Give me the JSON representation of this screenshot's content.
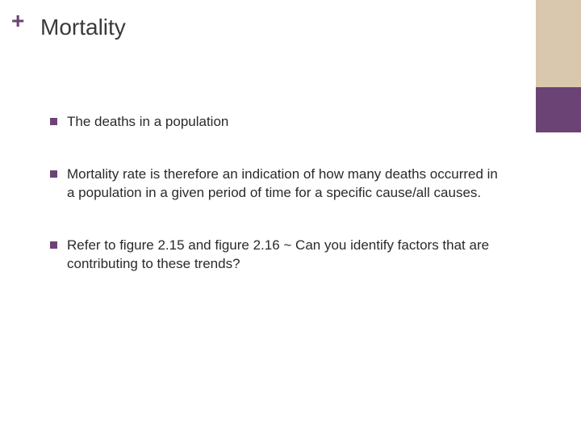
{
  "slide": {
    "plus_symbol": "+",
    "title": "Mortality",
    "accent_color": "#6b4475",
    "sidebar_colors": [
      "#d9c8ad",
      "#6b4475"
    ],
    "background_color": "#ffffff",
    "title_fontsize": 28,
    "body_fontsize": 17,
    "bullets": [
      {
        "text": "The deaths in a population"
      },
      {
        "text": "Mortality rate is therefore an indication of how many deaths occurred in a population in a given period of time for a specific cause/all causes."
      },
      {
        "text": "Refer to figure 2.15 and figure 2.16 ~ Can you identify factors that are contributing to these trends?"
      }
    ]
  }
}
